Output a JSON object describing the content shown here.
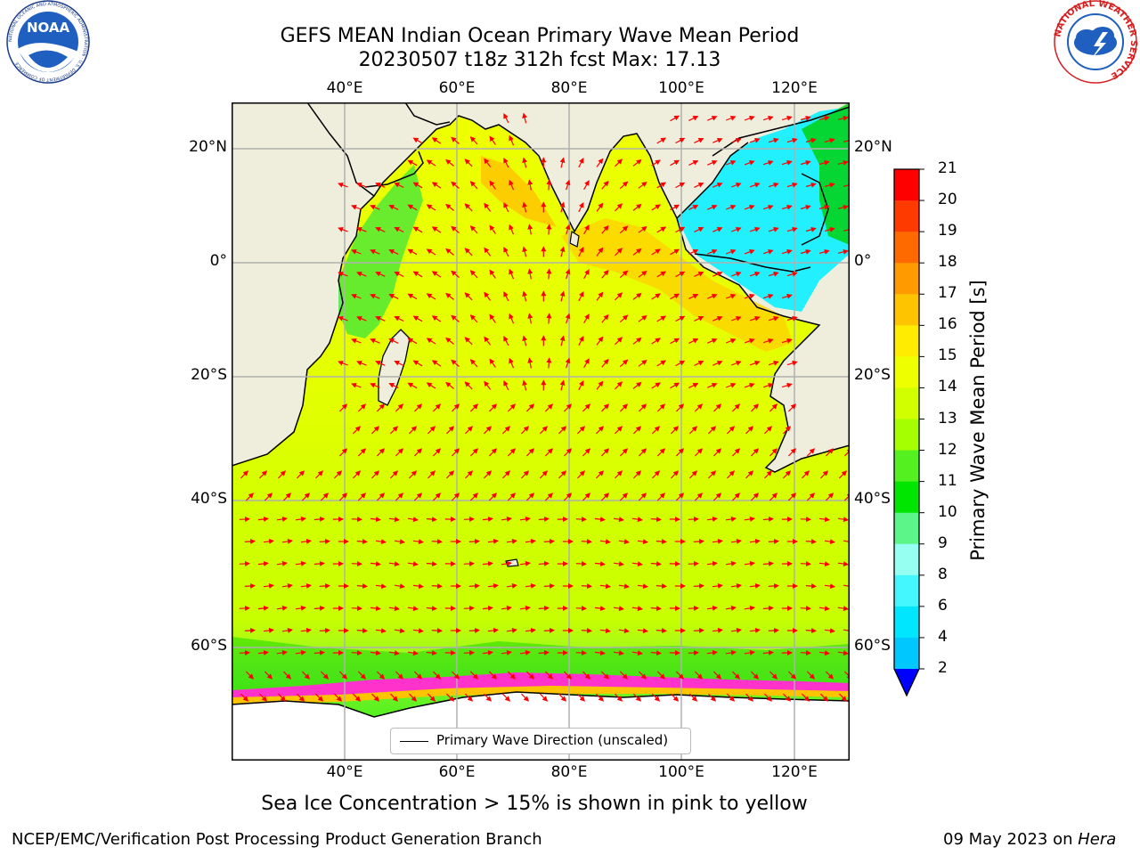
{
  "header": {
    "title_line1": "GEFS MEAN Indian Ocean Primary Wave Mean Period",
    "title_line2": "20230507 t18z 312h fcst   Max: 17.13"
  },
  "logos": {
    "left": "NOAA",
    "left_ring": "NATIONAL OCEANIC AND ATMOSPHERIC ADMINISTRATION · U.S. DEPARTMENT OF COMMERCE",
    "right_ring": "NATIONAL WEATHER SERVICE"
  },
  "map": {
    "longitude_ticks": [
      "40°E",
      "60°E",
      "80°E",
      "100°E",
      "120°E"
    ],
    "latitude_ticks": [
      "20°N",
      "0°",
      "20°S",
      "40°S",
      "60°S"
    ],
    "legend": "Primary Wave Direction (unscaled)",
    "colors": {
      "land": "#efeedd",
      "ice_free": "#ffffff",
      "arrow": "#ff0000",
      "grid": "#b0b0b0"
    }
  },
  "colorbar": {
    "label": "Primary Wave Mean Period [s]",
    "ticks": [
      "2",
      "4",
      "6",
      "8",
      "9",
      "10",
      "11",
      "12",
      "13",
      "14",
      "15",
      "16",
      "17",
      "18",
      "19",
      "20",
      "21"
    ],
    "colors": [
      "#0064ff",
      "#00c8ff",
      "#00e6ff",
      "#44f7ff",
      "#96fff2",
      "#5cf58a",
      "#00e600",
      "#55f020",
      "#a6ff00",
      "#d2ff00",
      "#eeff00",
      "#ffec00",
      "#ffc400",
      "#ff9a00",
      "#ff6a00",
      "#ff3a00",
      "#ff0000"
    ]
  },
  "caption": "Sea Ice Concentration > 15% is shown in pink to yellow",
  "footer": {
    "left": "NCEP/EMC/Verification Post Processing Product Generation Branch",
    "date": "09 May 2023 on ",
    "machine": "Hera"
  }
}
